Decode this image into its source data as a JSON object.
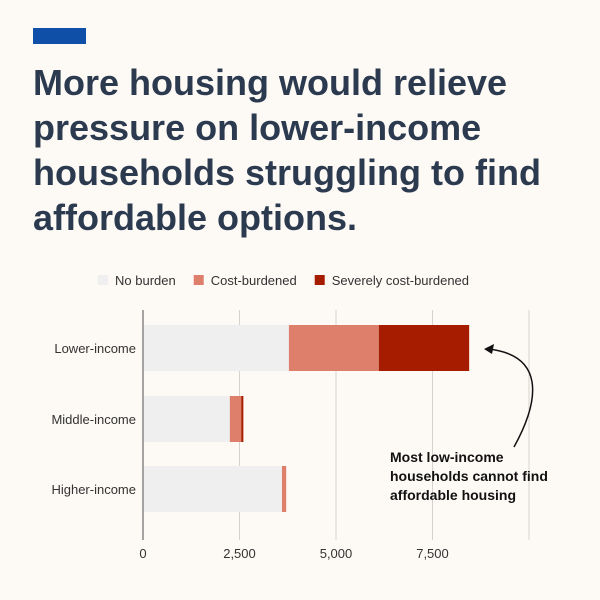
{
  "title": "More housing would relieve pressure on lower-income households struggling to find affordable options.",
  "colors": {
    "accent": "#0f4fa8",
    "no_burden": "#efefef",
    "cost": "#de7f6c",
    "severe": "#a51c00"
  },
  "chart_data": {
    "type": "bar",
    "orientation": "horizontal",
    "stacked": true,
    "categories": [
      "Lower-income",
      "Middle-income",
      "Higher-income"
    ],
    "series": [
      {
        "name": "No burden",
        "values": [
          3780,
          2250,
          3600
        ]
      },
      {
        "name": "Cost-burdened",
        "values": [
          2330,
          295,
          110
        ]
      },
      {
        "name": "Severely cost-burdened",
        "values": [
          2340,
          55,
          0
        ]
      }
    ],
    "xlim": [
      0,
      10000
    ],
    "xticks": [
      0,
      2500,
      5000,
      7500
    ],
    "xtick_labels": [
      "0",
      "2,500",
      "5,000",
      "7,500"
    ],
    "legend_position": "top",
    "annotation": [
      "Most low-income",
      "households cannot find",
      "affordable housing"
    ]
  }
}
